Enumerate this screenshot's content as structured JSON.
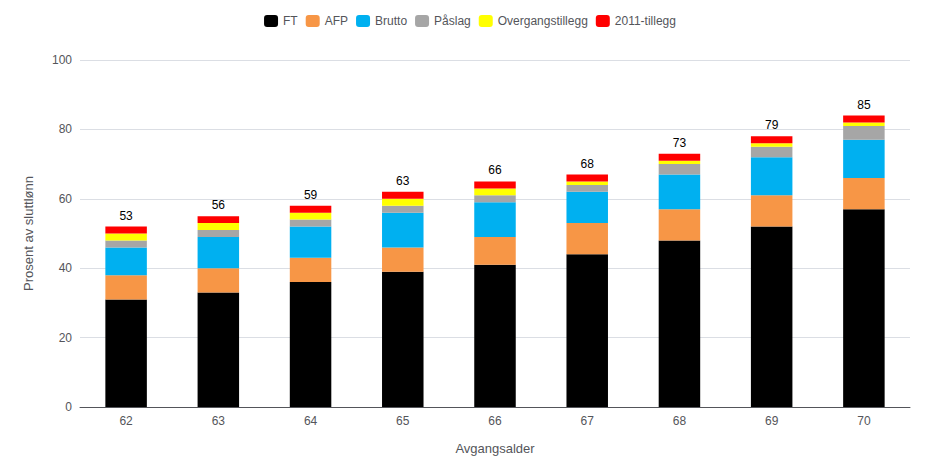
{
  "chart_data": {
    "type": "bar",
    "stacked": true,
    "categories": [
      "62",
      "63",
      "64",
      "65",
      "66",
      "67",
      "68",
      "69",
      "70"
    ],
    "series": [
      {
        "name": "FT",
        "color": "#000000",
        "values": [
          31,
          33,
          36,
          39,
          41,
          44,
          48,
          52,
          57
        ]
      },
      {
        "name": "AFP",
        "color": "#f79646",
        "values": [
          7,
          7,
          7,
          7,
          8,
          9,
          9,
          9,
          9
        ]
      },
      {
        "name": "Brutto",
        "color": "#00b0f0",
        "values": [
          8,
          9,
          9,
          10,
          10,
          9,
          10,
          11,
          11
        ]
      },
      {
        "name": "Påslag",
        "color": "#a6a6a6",
        "values": [
          2,
          2,
          2,
          2,
          2,
          2,
          3,
          3,
          4
        ]
      },
      {
        "name": "Overgangstillegg",
        "color": "#ffff00",
        "values": [
          2,
          2,
          2,
          2,
          2,
          1,
          1,
          1,
          1
        ]
      },
      {
        "name": "2011-tillegg",
        "color": "#ff0000",
        "values": [
          2,
          2,
          2,
          2,
          2,
          2,
          2,
          2,
          2
        ]
      }
    ],
    "totals": [
      53,
      56,
      59,
      63,
      66,
      68,
      73,
      79,
      85
    ],
    "xlabel": "Avgangsalder",
    "ylabel": "Prosent av sluttlønn",
    "ylim": [
      0,
      100
    ],
    "yticks": [
      0,
      20,
      40,
      60,
      80,
      100
    ],
    "grid": true,
    "legend": "top"
  }
}
